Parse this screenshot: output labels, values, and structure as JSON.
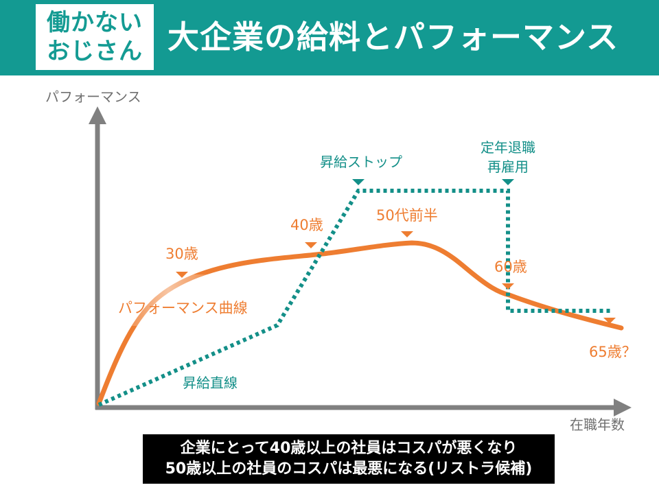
{
  "header": {
    "badge_line1": "働かない",
    "badge_line2": "おじさん",
    "title": "大企業の給料とパフォーマンス"
  },
  "axes": {
    "y_label": "パフォーマンス",
    "x_label": "在職年数"
  },
  "performance_curve": {
    "label": "パフォーマンス曲線",
    "color": "#ee7d31",
    "milestones": [
      "30歳",
      "40歳",
      "50代前半",
      "60歳",
      "65歳？"
    ]
  },
  "salary_line": {
    "label": "昇給直線",
    "color": "#138f88",
    "milestones": [
      "昇給ストップ",
      "定年退職",
      "再雇用"
    ]
  },
  "caption": {
    "line1": "企業にとって40歳以上の社員はコスパが悪くなり",
    "line2": "50歳以上の社員のコスパは最悪になる(リストラ候補)"
  }
}
